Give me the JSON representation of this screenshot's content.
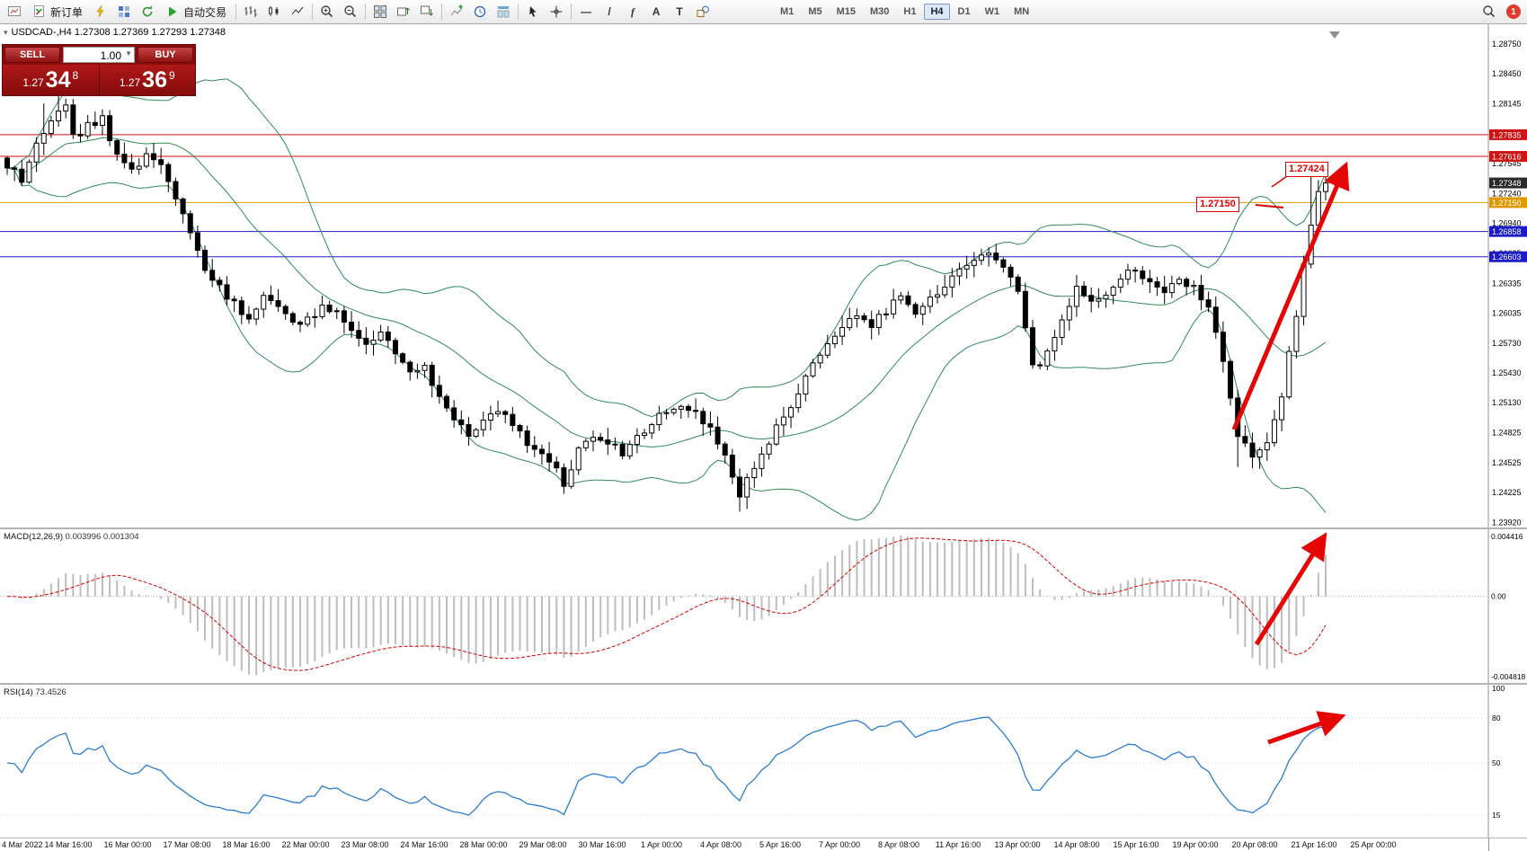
{
  "toolbar": {
    "groups": [
      {
        "items": [
          {
            "name": "new-chart-icon",
            "glyph": "chart"
          },
          {
            "name": "new-order-button",
            "glyph": "order",
            "label": "新订单"
          },
          {
            "name": "alerts-icon",
            "glyph": "bolt"
          },
          {
            "name": "market-watch-icon",
            "glyph": "gridblue"
          },
          {
            "name": "refresh-icon",
            "glyph": "refresh"
          },
          {
            "name": "auto-trading-button",
            "glyph": "play",
            "label": "自动交易"
          }
        ]
      },
      {
        "items": [
          {
            "name": "bar-chart-icon",
            "glyph": "bars"
          },
          {
            "name": "candlestick-chart-icon",
            "glyph": "candles"
          },
          {
            "name": "line-chart-icon",
            "glyph": "linechart"
          }
        ]
      },
      {
        "items": [
          {
            "name": "zoom-in-icon",
            "glyph": "zoomin"
          },
          {
            "name": "zoom-out-icon",
            "glyph": "zoomout"
          }
        ]
      },
      {
        "items": [
          {
            "name": "tile-windows-icon",
            "glyph": "tile"
          },
          {
            "name": "arrange-windows-icon",
            "glyph": "arrange1"
          },
          {
            "name": "dock-windows-icon",
            "glyph": "arrange2"
          }
        ]
      },
      {
        "items": [
          {
            "name": "indicators-icon",
            "glyph": "indplus"
          },
          {
            "name": "periods-icon",
            "glyph": "clock"
          },
          {
            "name": "templates-icon",
            "glyph": "template"
          }
        ]
      },
      {
        "items": [
          {
            "name": "cursor-icon",
            "glyph": "cursor"
          },
          {
            "name": "crosshair-icon",
            "glyph": "crosshair"
          }
        ]
      },
      {
        "items": [
          {
            "name": "hline-tool-icon",
            "text": "—"
          },
          {
            "name": "trendline-tool-icon",
            "text": "/"
          },
          {
            "name": "fibonacci-tool-icon",
            "text": "f"
          },
          {
            "name": "text-tool-icon",
            "text": "A"
          },
          {
            "name": "label-tool-icon",
            "text": "T"
          },
          {
            "name": "shapes-tool-icon",
            "glyph": "shapes"
          }
        ]
      }
    ],
    "timeframes": [
      "M1",
      "M5",
      "M15",
      "M30",
      "H1",
      "H4",
      "D1",
      "W1",
      "MN"
    ],
    "active_timeframe": "H4",
    "notification_count": "1"
  },
  "chart_header": {
    "title": "USDCAD-,H4 1.27308 1.27369 1.27293 1.27348",
    "collapse_caret": "▾"
  },
  "trade_panel": {
    "sell_label": "SELL",
    "buy_label": "BUY",
    "volume": "1.00",
    "sell_price_prefix": "1.27",
    "sell_price_main": "34",
    "sell_price_sup": "8",
    "buy_price_prefix": "1.27",
    "buy_price_main": "36",
    "buy_price_sup": "9"
  },
  "annotations": {
    "price_label_1": "1.27424",
    "price_label_2": "1.27150"
  },
  "price_axis": {
    "ticks": [
      "1.28750",
      "1.28450",
      "1.28145",
      "1.27845",
      "1.27545",
      "1.27240",
      "1.26940",
      "1.26635",
      "1.26335",
      "1.26035",
      "1.25730",
      "1.25430",
      "1.25130",
      "1.24825",
      "1.24525",
      "1.24225",
      "1.23920"
    ],
    "tags": [
      {
        "text": "1.27835",
        "price": 1.27835,
        "color": "#cf1212"
      },
      {
        "text": "1.27616",
        "price": 1.27616,
        "color": "#cf1212"
      },
      {
        "text": "1.27348",
        "price": 1.27348,
        "color": "#2b2b2b"
      },
      {
        "text": "1.27150",
        "price": 1.2715,
        "color": "#e09a00"
      },
      {
        "text": "1.26858",
        "price": 1.26858,
        "color": "#1b1bc8"
      },
      {
        "text": "1.26603",
        "price": 1.26603,
        "color": "#1b1bc8"
      }
    ]
  },
  "time_axis": [
    "4 Mar 2022",
    "14 Mar 16:00",
    "16 Mar 00:00",
    "17 Mar 08:00",
    "18 Mar 16:00",
    "22 Mar 00:00",
    "23 Mar 08:00",
    "24 Mar 16:00",
    "28 Mar 00:00",
    "29 Mar 08:00",
    "30 Mar 16:00",
    "1 Apr 00:00",
    "4 Apr 08:00",
    "5 Apr 16:00",
    "7 Apr 00:00",
    "8 Apr 08:00",
    "11 Apr 16:00",
    "13 Apr 00:00",
    "14 Apr 08:00",
    "15 Apr 16:00",
    "19 Apr 00:00",
    "20 Apr 08:00",
    "21 Apr 16:00",
    "25 Apr 00:00"
  ],
  "macd": {
    "label_name": "MACD(12,26,9)",
    "label_values": "0.003996 0.001304",
    "axis_top": "0.004416",
    "axis_zero": "0.00",
    "axis_bottom": "-0.004818"
  },
  "rsi": {
    "label_name": "RSI(14)",
    "label_value": "73.4526",
    "axis": [
      "100",
      "80",
      "50",
      "15"
    ]
  },
  "colors": {
    "bull": "#ffffff",
    "bear": "#000000",
    "band": "#2e8b57",
    "macd_hist": "#bdbdbd",
    "macd_signal": "#d40000",
    "rsi_line": "#2b7cd3",
    "arrow": "#e60505",
    "axis_line": "#909090"
  },
  "chart_data": {
    "type": "candlestick",
    "symbol": "USDCAD-",
    "timeframe": "H4",
    "ohlc_current": {
      "open": 1.27308,
      "high": 1.27369,
      "low": 1.27293,
      "close": 1.27348
    },
    "price_axis_range": [
      1.2387,
      1.2895
    ],
    "candle_count": 181,
    "close_path": [
      [
        0,
        1.2752
      ],
      [
        2,
        1.2738
      ],
      [
        4,
        1.2775
      ],
      [
        6,
        1.2798
      ],
      [
        8,
        1.2812
      ],
      [
        9,
        1.278
      ],
      [
        11,
        1.2792
      ],
      [
        13,
        1.2802
      ],
      [
        15,
        1.276
      ],
      [
        17,
        1.2748
      ],
      [
        19,
        1.2764
      ],
      [
        21,
        1.2752
      ],
      [
        23,
        1.2722
      ],
      [
        25,
        1.2685
      ],
      [
        27,
        1.2645
      ],
      [
        29,
        1.2628
      ],
      [
        31,
        1.2612
      ],
      [
        33,
        1.26
      ],
      [
        35,
        1.262
      ],
      [
        37,
        1.2607
      ],
      [
        39,
        1.259
      ],
      [
        41,
        1.2597
      ],
      [
        43,
        1.261
      ],
      [
        45,
        1.2602
      ],
      [
        47,
        1.2587
      ],
      [
        49,
        1.2574
      ],
      [
        51,
        1.2582
      ],
      [
        53,
        1.2562
      ],
      [
        55,
        1.2542
      ],
      [
        57,
        1.2547
      ],
      [
        59,
        1.2522
      ],
      [
        61,
        1.2497
      ],
      [
        63,
        1.2482
      ],
      [
        65,
        1.2494
      ],
      [
        67,
        1.2507
      ],
      [
        69,
        1.249
      ],
      [
        71,
        1.2472
      ],
      [
        73,
        1.246
      ],
      [
        75,
        1.2447
      ],
      [
        76,
        1.2432
      ],
      [
        78,
        1.2467
      ],
      [
        80,
        1.2482
      ],
      [
        82,
        1.2474
      ],
      [
        84,
        1.2462
      ],
      [
        86,
        1.2477
      ],
      [
        88,
        1.2492
      ],
      [
        90,
        1.2504
      ],
      [
        92,
        1.2512
      ],
      [
        94,
        1.25
      ],
      [
        96,
        1.2484
      ],
      [
        98,
        1.2457
      ],
      [
        100,
        1.2422
      ],
      [
        102,
        1.2447
      ],
      [
        104,
        1.2472
      ],
      [
        106,
        1.25
      ],
      [
        108,
        1.2522
      ],
      [
        110,
        1.255
      ],
      [
        112,
        1.2572
      ],
      [
        114,
        1.2592
      ],
      [
        116,
        1.2604
      ],
      [
        118,
        1.259
      ],
      [
        120,
        1.2607
      ],
      [
        122,
        1.262
      ],
      [
        124,
        1.2604
      ],
      [
        126,
        1.2617
      ],
      [
        128,
        1.2632
      ],
      [
        130,
        1.2644
      ],
      [
        132,
        1.2657
      ],
      [
        134,
        1.2667
      ],
      [
        136,
        1.265
      ],
      [
        138,
        1.2622
      ],
      [
        140,
        1.2547
      ],
      [
        142,
        1.2562
      ],
      [
        144,
        1.2597
      ],
      [
        146,
        1.2627
      ],
      [
        148,
        1.2612
      ],
      [
        150,
        1.2624
      ],
      [
        152,
        1.264
      ],
      [
        154,
        1.2647
      ],
      [
        156,
        1.2632
      ],
      [
        158,
        1.262
      ],
      [
        160,
        1.2642
      ],
      [
        162,
        1.2627
      ],
      [
        164,
        1.2607
      ],
      [
        166,
        1.2557
      ],
      [
        168,
        1.2482
      ],
      [
        170,
        1.2457
      ],
      [
        172,
        1.2472
      ],
      [
        174,
        1.2522
      ],
      [
        175,
        1.2562
      ],
      [
        176,
        1.2602
      ],
      [
        177,
        1.2652
      ],
      [
        178,
        1.2692
      ],
      [
        179,
        1.2722
      ],
      [
        180,
        1.27348
      ]
    ],
    "wick_overrides": [
      [
        5,
        "h",
        1.2815
      ],
      [
        7,
        "h",
        1.2832
      ],
      [
        76,
        "l",
        1.2421
      ],
      [
        100,
        "l",
        1.2403
      ],
      [
        168,
        "l",
        1.2448
      ],
      [
        178,
        "h",
        1.2747
      ]
    ],
    "indicators": {
      "bollinger": {
        "period": 20,
        "deviation": 2
      },
      "macd": {
        "fast": 12,
        "slow": 26,
        "signal": 9,
        "current_main": 0.003996,
        "current_signal": 0.001304
      },
      "rsi": {
        "period": 14,
        "current": 73.4526
      }
    },
    "levels": [
      {
        "price": 1.27835,
        "color": "#cf1212",
        "name": "resistance-1"
      },
      {
        "price": 1.27616,
        "color": "#cf1212",
        "name": "resistance-2"
      },
      {
        "price": 1.2715,
        "color": "#e09a00",
        "name": "mid-level"
      },
      {
        "price": 1.26858,
        "color": "#1b1bc8",
        "name": "support-1"
      },
      {
        "price": 1.26603,
        "color": "#1b1bc8",
        "name": "support-2"
      }
    ],
    "trend_annotation": "strong up arrows on price, MACD and RSI"
  }
}
